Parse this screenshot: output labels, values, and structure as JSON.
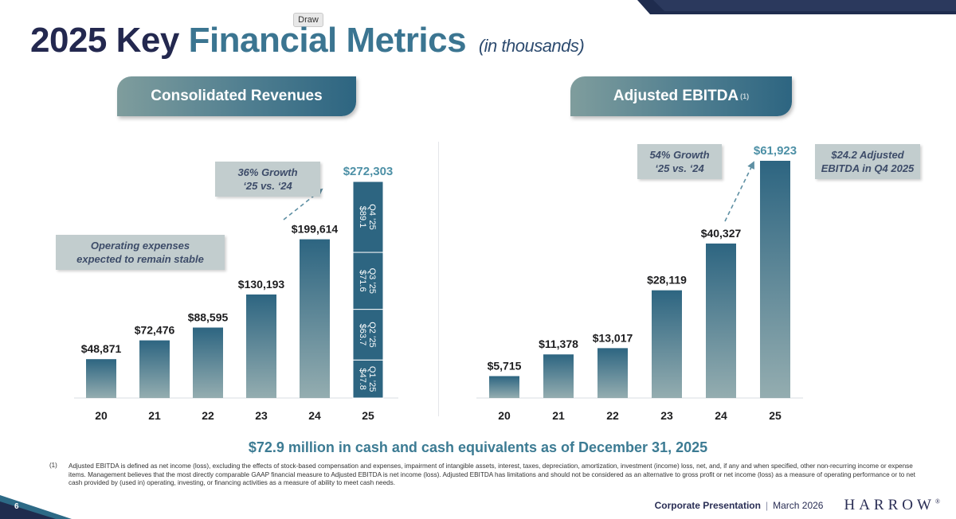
{
  "page": {
    "draw_tag": "Draw",
    "title_part1": "2025 Key",
    "title_part2": "Financial Metrics",
    "title_part3": "(in thousands)",
    "cash_statement": "$72.9 million in cash and cash equivalents as of December 31, 2025",
    "footnote_marker": "(1)",
    "footnote": "Adjusted EBITDA is defined as net income (loss), excluding the effects of stock-based compensation and expenses, impairment of intangible assets, interest, taxes, depreciation, amortization, investment (income) loss, net, and, if any and when specified, other non-recurring income or expense items. Management believes that the most directly comparable GAAP financial measure to Adjusted EBITDA is net income (loss). Adjusted EBITDA has limitations and should not be considered as an alternative to gross profit or net income (loss) as a measure of operating performance or to net cash provided by (used in) operating, investing, or financing activities as a measure of ability to meet cash needs.",
    "page_number": "6",
    "footer_label": "Corporate Presentation",
    "footer_separator": "|",
    "footer_date": "March 2026",
    "logo_text": "HARROW",
    "logo_mark": "®"
  },
  "colors": {
    "navy": "#23284f",
    "teal": "#3b7591",
    "bar_dark": "#2d6581",
    "bar_light": "#94adb0",
    "value_highlight": "#4d90a6",
    "arrow": "#5e8fa3",
    "callout_bg": "#c2cdce"
  },
  "callouts": {
    "revenue_growth": [
      "36% Growth",
      "‘25 vs. ‘24"
    ],
    "opex": [
      "Operating expenses",
      "expected to remain stable"
    ],
    "ebitda_growth": [
      "54% Growth",
      "‘25 vs. ‘24"
    ],
    "q4_ebitda": [
      "$24.2 Adjusted",
      "EBITDA in Q4 2025"
    ]
  },
  "chart_data": [
    {
      "type": "bar",
      "title": "Consolidated Revenues",
      "categories": [
        "20",
        "21",
        "22",
        "23",
        "24",
        "25"
      ],
      "values": [
        48871,
        72476,
        88595,
        130193,
        199614,
        272303
      ],
      "value_labels": [
        "$48,871",
        "$72,476",
        "$88,595",
        "$130,193",
        "$199,614",
        "$272,303"
      ],
      "stacked_last": {
        "category": "25",
        "segments": [
          {
            "label": "Q1 ’25",
            "value_label": "$47.8",
            "value": 47.8
          },
          {
            "label": "Q2 ’25",
            "value_label": "$63.7",
            "value": 63.7
          },
          {
            "label": "Q3 ’25",
            "value_label": "$71.6",
            "value": 71.6
          },
          {
            "label": "Q4 ’25",
            "value_label": "$89.1",
            "value": 89.1
          }
        ]
      },
      "ylim": [
        0,
        272303
      ],
      "xlabel": "",
      "ylabel": ""
    },
    {
      "type": "bar",
      "title": "Adjusted EBITDA",
      "title_marker": "(1)",
      "categories": [
        "20",
        "21",
        "22",
        "23",
        "24",
        "25"
      ],
      "values": [
        5715,
        11378,
        13017,
        28119,
        40327,
        61923
      ],
      "value_labels": [
        "$5,715",
        "$11,378",
        "$13,017",
        "$28,119",
        "$40,327",
        "$61,923"
      ],
      "ylim": [
        0,
        61923
      ],
      "xlabel": "",
      "ylabel": ""
    }
  ]
}
